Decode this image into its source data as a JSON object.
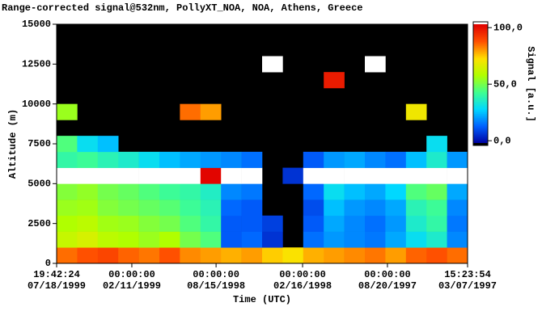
{
  "chart_data": {
    "type": "heatmap",
    "title": "Range-corrected signal@532nm, PollyXT_NOA, NOA, Athens, Greece",
    "xlabel": "Time (UTC)",
    "ylabel": "Altitude (m)",
    "colorbar_label": "Signal [a.u.]",
    "xlim": [
      0,
      20
    ],
    "xticks": [
      {
        "value": 0,
        "label": [
          "19:42:24",
          "07/18/1999"
        ]
      },
      {
        "value": 3.66,
        "label": [
          "00:00:00",
          "02/11/1999"
        ]
      },
      {
        "value": 7.76,
        "label": [
          "00:00:00",
          "08/15/1998"
        ]
      },
      {
        "value": 11.97,
        "label": [
          "00:00:00",
          "02/16/1998"
        ]
      },
      {
        "value": 16.1,
        "label": [
          "00:00:00",
          "08/20/1997"
        ]
      },
      {
        "value": 20,
        "label": [
          "15:23:54",
          "03/07/1997"
        ]
      }
    ],
    "ylim": [
      0,
      15000
    ],
    "yticks": [
      0,
      2500,
      5000,
      7500,
      10000,
      12500,
      15000
    ],
    "ybins": [
      0,
      1000,
      2000,
      3000,
      4000,
      5000,
      6000,
      7000,
      8000,
      9000,
      10000,
      11000,
      12000,
      13000,
      14000,
      15000
    ],
    "zlim": [
      -2,
      103
    ],
    "zticks": [
      {
        "value": 0,
        "label": "0,0"
      },
      {
        "value": 50,
        "label": "50,0"
      },
      {
        "value": 100,
        "label": "100,0"
      }
    ],
    "colormap": [
      "#0000a0",
      "#0060ff",
      "#00d8ff",
      "#40ff90",
      "#b0ff00",
      "#ffe000",
      "#ff5000",
      "#e00000"
    ],
    "under_color": "#000000",
    "over_color": "#ffffff",
    "background": "#000000",
    "z": [
      [
        85,
        88,
        90,
        86,
        84,
        88,
        82,
        80,
        78,
        80,
        75,
        72,
        78,
        80,
        82,
        84,
        80,
        86,
        88,
        85
      ],
      [
        62,
        65,
        60,
        58,
        55,
        58,
        50,
        45,
        12,
        14,
        6,
        null,
        15,
        20,
        18,
        16,
        22,
        30,
        35,
        18
      ],
      [
        58,
        60,
        56,
        55,
        52,
        50,
        45,
        40,
        12,
        12,
        8,
        null,
        12,
        22,
        18,
        15,
        20,
        35,
        40,
        16
      ],
      [
        55,
        56,
        52,
        50,
        48,
        46,
        42,
        38,
        14,
        12,
        null,
        null,
        10,
        25,
        20,
        18,
        22,
        38,
        42,
        18
      ],
      [
        52,
        54,
        50,
        48,
        45,
        42,
        40,
        36,
        18,
        16,
        null,
        null,
        14,
        30,
        25,
        22,
        28,
        45,
        48,
        22
      ],
      [
        108,
        110,
        112,
        108,
        106,
        105,
        104,
        102,
        110,
        108,
        null,
        6,
        110,
        112,
        110,
        108,
        106,
        104,
        110,
        108
      ],
      [
        40,
        42,
        38,
        35,
        30,
        25,
        22,
        20,
        18,
        15,
        null,
        null,
        12,
        20,
        22,
        18,
        15,
        25,
        35,
        20
      ],
      [
        45,
        30,
        25,
        null,
        null,
        null,
        null,
        null,
        null,
        null,
        null,
        null,
        null,
        null,
        null,
        null,
        null,
        null,
        30,
        null
      ],
      [
        null,
        null,
        null,
        null,
        null,
        null,
        null,
        null,
        null,
        null,
        null,
        null,
        null,
        null,
        null,
        null,
        null,
        null,
        null,
        null
      ],
      [
        55,
        null,
        null,
        null,
        null,
        null,
        85,
        80,
        null,
        null,
        null,
        null,
        null,
        null,
        null,
        null,
        null,
        70,
        null,
        null
      ],
      [
        null,
        null,
        null,
        null,
        null,
        null,
        null,
        null,
        null,
        null,
        null,
        null,
        null,
        null,
        null,
        null,
        null,
        null,
        null,
        null
      ],
      [
        null,
        null,
        null,
        null,
        null,
        null,
        null,
        null,
        null,
        null,
        null,
        null,
        null,
        98,
        null,
        null,
        null,
        null,
        null,
        null
      ],
      [
        null,
        null,
        null,
        null,
        null,
        null,
        null,
        null,
        null,
        null,
        110,
        null,
        null,
        null,
        null,
        110,
        null,
        null,
        null,
        null
      ],
      [
        null,
        null,
        null,
        null,
        null,
        null,
        null,
        null,
        null,
        null,
        null,
        null,
        null,
        null,
        null,
        null,
        null,
        null,
        null,
        null
      ],
      [
        null,
        null,
        null,
        null,
        null,
        null,
        null,
        null,
        null,
        null,
        null,
        null,
        null,
        null,
        null,
        null,
        null,
        null,
        null,
        null
      ]
    ]
  }
}
